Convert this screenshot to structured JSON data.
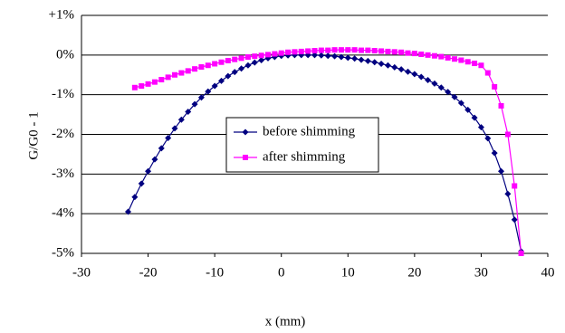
{
  "chart_data": {
    "type": "line",
    "x_label": "x  (mm)",
    "y_label": "G/G0 - 1",
    "xlim": [
      -30,
      40
    ],
    "xticks": [
      -30,
      -20,
      -10,
      0,
      10,
      20,
      30,
      40
    ],
    "ylim": [
      -5,
      1
    ],
    "yticks": [
      {
        "value": 1,
        "label": "+1%"
      },
      {
        "value": 0,
        "label": "0%"
      },
      {
        "value": -1,
        "label": "-1%"
      },
      {
        "value": -2,
        "label": "-2%"
      },
      {
        "value": -3,
        "label": "-3%"
      },
      {
        "value": -4,
        "label": "-4%"
      },
      {
        "value": -5,
        "label": "-5%"
      }
    ],
    "grid": true,
    "legend": "center",
    "series": [
      {
        "name": "before shimming",
        "color": "#000080",
        "marker": "diamond",
        "x": [
          -23,
          -22,
          -21,
          -20,
          -19,
          -18,
          -17,
          -16,
          -15,
          -14,
          -13,
          -12,
          -11,
          -10,
          -9,
          -8,
          -7,
          -6,
          -5,
          -4,
          -3,
          -2,
          -1,
          0,
          1,
          2,
          3,
          4,
          5,
          6,
          7,
          8,
          9,
          10,
          11,
          12,
          13,
          14,
          15,
          16,
          17,
          18,
          19,
          20,
          21,
          22,
          23,
          24,
          25,
          26,
          27,
          28,
          29,
          30,
          31,
          32,
          33,
          34,
          35,
          36
        ],
        "values": [
          -3.95,
          -3.58,
          -3.24,
          -2.93,
          -2.63,
          -2.35,
          -2.09,
          -1.85,
          -1.63,
          -1.43,
          -1.24,
          -1.07,
          -0.92,
          -0.78,
          -0.65,
          -0.53,
          -0.43,
          -0.34,
          -0.26,
          -0.19,
          -0.13,
          -0.08,
          -0.05,
          -0.02,
          -0.01,
          0.0,
          0.0,
          0.0,
          0.0,
          -0.01,
          -0.02,
          -0.03,
          -0.05,
          -0.07,
          -0.09,
          -0.12,
          -0.15,
          -0.18,
          -0.22,
          -0.26,
          -0.31,
          -0.36,
          -0.42,
          -0.48,
          -0.55,
          -0.63,
          -0.72,
          -0.82,
          -0.93,
          -1.06,
          -1.21,
          -1.38,
          -1.58,
          -1.82,
          -2.1,
          -2.47,
          -2.93,
          -3.5,
          -4.15,
          -4.95
        ]
      },
      {
        "name": "after shimming",
        "color": "#ff00ff",
        "marker": "square",
        "x": [
          -22,
          -21,
          -20,
          -19,
          -18,
          -17,
          -16,
          -15,
          -14,
          -13,
          -12,
          -11,
          -10,
          -9,
          -8,
          -7,
          -6,
          -5,
          -4,
          -3,
          -2,
          -1,
          0,
          1,
          2,
          3,
          4,
          5,
          6,
          7,
          8,
          9,
          10,
          11,
          12,
          13,
          14,
          15,
          16,
          17,
          18,
          19,
          20,
          21,
          22,
          23,
          24,
          25,
          26,
          27,
          28,
          29,
          30,
          31,
          32,
          33,
          34,
          35,
          36
        ],
        "values": [
          -0.82,
          -0.78,
          -0.73,
          -0.68,
          -0.62,
          -0.56,
          -0.5,
          -0.45,
          -0.4,
          -0.35,
          -0.3,
          -0.26,
          -0.22,
          -0.18,
          -0.14,
          -0.11,
          -0.08,
          -0.05,
          -0.03,
          -0.01,
          0.01,
          0.03,
          0.05,
          0.07,
          0.08,
          0.09,
          0.1,
          0.11,
          0.12,
          0.12,
          0.13,
          0.13,
          0.13,
          0.13,
          0.12,
          0.12,
          0.11,
          0.1,
          0.09,
          0.08,
          0.07,
          0.05,
          0.04,
          0.02,
          0.0,
          -0.02,
          -0.04,
          -0.07,
          -0.1,
          -0.13,
          -0.17,
          -0.21,
          -0.26,
          -0.45,
          -0.8,
          -1.28,
          -2.0,
          -3.3,
          -5.0
        ]
      }
    ]
  }
}
